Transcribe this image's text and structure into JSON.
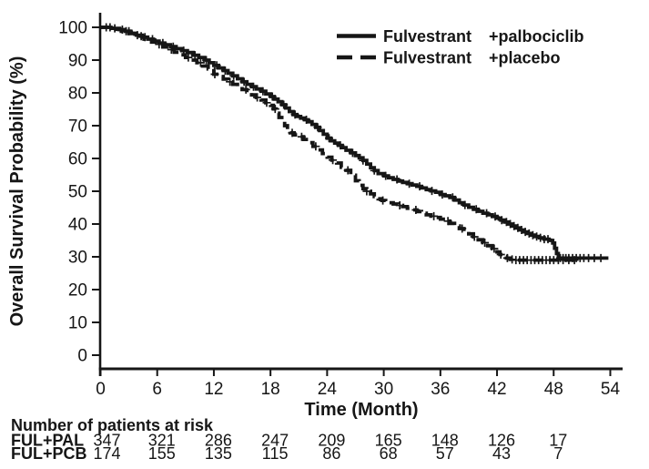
{
  "figure": {
    "background": "#ffffff",
    "ink_color": "#161616"
  },
  "chart_data": {
    "type": "line",
    "subtype": "kaplan_meier_step",
    "title": "",
    "xlabel": "Time (Month)",
    "ylabel": "Overall Survival Probability (%)",
    "xlim": [
      0,
      54
    ],
    "ylim": [
      0,
      100
    ],
    "xticks": [
      0,
      6,
      12,
      18,
      24,
      30,
      36,
      42,
      48,
      54
    ],
    "yticks": [
      0,
      10,
      20,
      30,
      40,
      50,
      60,
      70,
      80,
      90,
      100
    ],
    "grid": false,
    "legend": {
      "position": "top-right",
      "entries": [
        {
          "label_main": "Fulvestrant",
          "label_suffix": "+palbociclib",
          "line_style": "solid"
        },
        {
          "label_main": "Fulvestrant",
          "label_suffix": "+placebo",
          "line_style": "dashed"
        }
      ]
    },
    "series": [
      {
        "name": "Fulvestrant +palbociclib",
        "style": "solid",
        "points": [
          [
            0,
            100
          ],
          [
            1.1,
            99.7
          ],
          [
            2,
            99.3
          ],
          [
            2.6,
            98.8
          ],
          [
            3.2,
            98.2
          ],
          [
            3.8,
            97.6
          ],
          [
            4.4,
            97
          ],
          [
            5,
            96.4
          ],
          [
            5.6,
            95.8
          ],
          [
            6.2,
            95.2
          ],
          [
            6.8,
            94.7
          ],
          [
            7.4,
            94.1
          ],
          [
            8,
            93.5
          ],
          [
            8.6,
            92.9
          ],
          [
            9.2,
            92.3
          ],
          [
            9.8,
            91.5
          ],
          [
            10.4,
            90.8
          ],
          [
            11,
            90
          ],
          [
            11.5,
            89.2
          ],
          [
            12,
            88.4
          ],
          [
            12.5,
            87.6
          ],
          [
            13,
            86.8
          ],
          [
            13.5,
            86
          ],
          [
            14,
            85.2
          ],
          [
            14.5,
            84.3
          ],
          [
            15,
            83.4
          ],
          [
            15.5,
            82.6
          ],
          [
            16,
            81.9
          ],
          [
            16.5,
            81.2
          ],
          [
            17,
            80.5
          ],
          [
            17.5,
            79.7
          ],
          [
            18,
            78.9
          ],
          [
            18.4,
            78.1
          ],
          [
            18.8,
            77.3
          ],
          [
            19.2,
            76.4
          ],
          [
            19.6,
            75.4
          ],
          [
            20,
            74.3
          ],
          [
            20.4,
            73.4
          ],
          [
            20.8,
            72.8
          ],
          [
            21.2,
            72.3
          ],
          [
            21.6,
            71.8
          ],
          [
            22,
            71.2
          ],
          [
            22.4,
            70.4
          ],
          [
            22.8,
            69.5
          ],
          [
            23.2,
            68.5
          ],
          [
            23.6,
            67.4
          ],
          [
            24,
            66.2
          ],
          [
            24.4,
            65.4
          ],
          [
            24.8,
            64.7
          ],
          [
            25.2,
            64
          ],
          [
            25.6,
            63.3
          ],
          [
            26,
            62.5
          ],
          [
            26.5,
            61.7
          ],
          [
            27,
            60.9
          ],
          [
            27.4,
            60.2
          ],
          [
            27.8,
            59.4
          ],
          [
            28.2,
            58.3
          ],
          [
            28.6,
            57.2
          ],
          [
            29,
            56.3
          ],
          [
            29.4,
            55.4
          ],
          [
            30,
            54.7
          ],
          [
            30.5,
            54.1
          ],
          [
            31,
            53.6
          ],
          [
            31.5,
            53.1
          ],
          [
            32,
            52.7
          ],
          [
            32.5,
            52.3
          ],
          [
            33,
            51.9
          ],
          [
            33.5,
            51.5
          ],
          [
            34,
            51
          ],
          [
            34.5,
            50.5
          ],
          [
            35,
            50.1
          ],
          [
            35.5,
            49.7
          ],
          [
            36,
            49
          ],
          [
            36.5,
            48.6
          ],
          [
            37,
            48.1
          ],
          [
            37.5,
            47.3
          ],
          [
            38,
            46.5
          ],
          [
            38.5,
            45.8
          ],
          [
            39,
            45.1
          ],
          [
            39.5,
            44.5
          ],
          [
            40,
            43.9
          ],
          [
            40.5,
            43.3
          ],
          [
            41,
            42.8
          ],
          [
            41.5,
            42.3
          ],
          [
            42,
            41.8
          ],
          [
            42.4,
            41.2
          ],
          [
            42.8,
            40.6
          ],
          [
            43.2,
            40
          ],
          [
            43.6,
            39.4
          ],
          [
            44,
            38.8
          ],
          [
            44.4,
            38.2
          ],
          [
            44.8,
            37.6
          ],
          [
            45.2,
            37.1
          ],
          [
            45.6,
            36.6
          ],
          [
            46,
            36.2
          ],
          [
            46.5,
            35.8
          ],
          [
            47,
            35.4
          ],
          [
            47.5,
            35
          ],
          [
            47.9,
            34.2
          ],
          [
            48.1,
            32.6
          ],
          [
            48.3,
            31
          ],
          [
            48.5,
            29.6
          ],
          [
            53.8,
            29.6
          ]
        ],
        "censor_times": [
          0.6,
          1.5,
          2.3,
          3,
          3.9,
          4.7,
          5.5,
          6.6,
          7.7,
          8.8,
          10,
          11.2,
          12.3,
          13.2,
          14.1,
          15.2,
          16.2,
          17.2,
          18.2,
          19.4,
          20.6,
          21.8,
          23,
          24.2,
          25.4,
          26.7,
          27.8,
          29,
          30.2,
          31.4,
          32.7,
          33.8,
          35.1,
          36.2,
          37.3,
          38.6,
          39.8,
          40.9,
          41.8,
          42.5,
          43,
          43.4,
          43.8,
          44.2,
          44.6,
          45,
          45.4,
          45.8,
          46.2,
          46.6,
          47,
          47.4,
          48.7,
          49,
          49.3,
          49.6,
          50,
          50.4,
          50.8,
          51.2,
          51.7,
          52.3,
          53
        ]
      },
      {
        "name": "Fulvestrant +placebo",
        "style": "dashed",
        "points": [
          [
            0,
            100
          ],
          [
            1.3,
            99.4
          ],
          [
            2.2,
            98.8
          ],
          [
            3,
            98.1
          ],
          [
            3.8,
            97.3
          ],
          [
            4.6,
            96.4
          ],
          [
            5.4,
            95.5
          ],
          [
            6,
            94.8
          ],
          [
            6.6,
            94
          ],
          [
            7.2,
            93.2
          ],
          [
            7.8,
            92.4
          ],
          [
            8.4,
            91.6
          ],
          [
            9,
            90.8
          ],
          [
            9.6,
            90
          ],
          [
            10.2,
            89.2
          ],
          [
            10.8,
            88.2
          ],
          [
            11.4,
            87.3
          ],
          [
            12,
            85.7
          ],
          [
            12.5,
            85
          ],
          [
            13,
            84.2
          ],
          [
            13.5,
            83.4
          ],
          [
            14,
            82.6
          ],
          [
            14.5,
            81.8
          ],
          [
            15,
            81
          ],
          [
            15.5,
            80.2
          ],
          [
            16,
            79.4
          ],
          [
            16.5,
            78.6
          ],
          [
            17,
            77.8
          ],
          [
            17.5,
            77
          ],
          [
            18,
            76.2
          ],
          [
            18.3,
            75.1
          ],
          [
            18.6,
            73.8
          ],
          [
            18.9,
            72.5
          ],
          [
            19.2,
            71.2
          ],
          [
            19.5,
            70
          ],
          [
            19.8,
            68.8
          ],
          [
            20.1,
            67.8
          ],
          [
            20.5,
            67.2
          ],
          [
            21,
            66.6
          ],
          [
            21.5,
            65.8
          ],
          [
            22,
            64.8
          ],
          [
            22.5,
            63.7
          ],
          [
            23,
            62.6
          ],
          [
            23.5,
            61.5
          ],
          [
            24,
            60.4
          ],
          [
            24.5,
            59.5
          ],
          [
            25,
            58.6
          ],
          [
            25.5,
            57.3
          ],
          [
            26,
            56.4
          ],
          [
            26.5,
            54.9
          ],
          [
            27,
            53.2
          ],
          [
            27.4,
            51.8
          ],
          [
            27.8,
            50.8
          ],
          [
            28.2,
            50
          ],
          [
            28.6,
            49.2
          ],
          [
            29,
            48.4
          ],
          [
            29.4,
            47.7
          ],
          [
            29.8,
            47.2
          ],
          [
            30.2,
            46.8
          ],
          [
            30.6,
            46.5
          ],
          [
            31,
            46.1
          ],
          [
            31.5,
            45.7
          ],
          [
            32,
            45.3
          ],
          [
            32.5,
            44.8
          ],
          [
            33,
            44.3
          ],
          [
            33.5,
            43.8
          ],
          [
            34,
            43.3
          ],
          [
            34.5,
            42.8
          ],
          [
            35,
            42.4
          ],
          [
            35.5,
            42
          ],
          [
            36,
            41.5
          ],
          [
            36.5,
            40.9
          ],
          [
            37,
            40.2
          ],
          [
            37.5,
            39.4
          ],
          [
            38,
            38.6
          ],
          [
            38.5,
            37.8
          ],
          [
            39,
            37
          ],
          [
            39.5,
            36.1
          ],
          [
            40,
            35.2
          ],
          [
            40.5,
            34.3
          ],
          [
            41,
            33.4
          ],
          [
            41.5,
            32.5
          ],
          [
            42,
            31.5
          ],
          [
            42.3,
            30.7
          ],
          [
            42.6,
            30.1
          ],
          [
            43,
            29.6
          ],
          [
            43.4,
            29.2
          ],
          [
            43.8,
            29
          ],
          [
            50.8,
            29
          ]
        ],
        "censor_times": [
          1,
          2.7,
          4.3,
          6.2,
          7.5,
          9.3,
          10.6,
          12.1,
          13.7,
          15.4,
          16.6,
          17.6,
          18.5,
          20.3,
          21.3,
          22.8,
          24.6,
          26.2,
          28.2,
          29.9,
          31.7,
          33.4,
          35.3,
          36.8,
          38.3,
          39.6,
          40.7,
          41.7,
          42.4,
          43.1,
          43.6,
          44,
          44.4,
          44.8,
          45.2,
          45.6,
          46,
          46.4,
          46.8,
          47.2,
          47.6,
          48,
          48.5,
          49,
          49.6,
          50.2
        ]
      }
    ],
    "risk_table": {
      "title": "Number of patients at risk",
      "times": [
        0,
        6,
        12,
        18,
        24,
        30,
        36,
        42,
        48
      ],
      "rows": [
        {
          "label": "FUL+PAL",
          "counts": [
            347,
            321,
            286,
            247,
            209,
            165,
            148,
            126,
            17
          ]
        },
        {
          "label": "FUL+PCB",
          "counts": [
            174,
            155,
            135,
            115,
            86,
            68,
            57,
            43,
            7
          ]
        }
      ]
    }
  }
}
